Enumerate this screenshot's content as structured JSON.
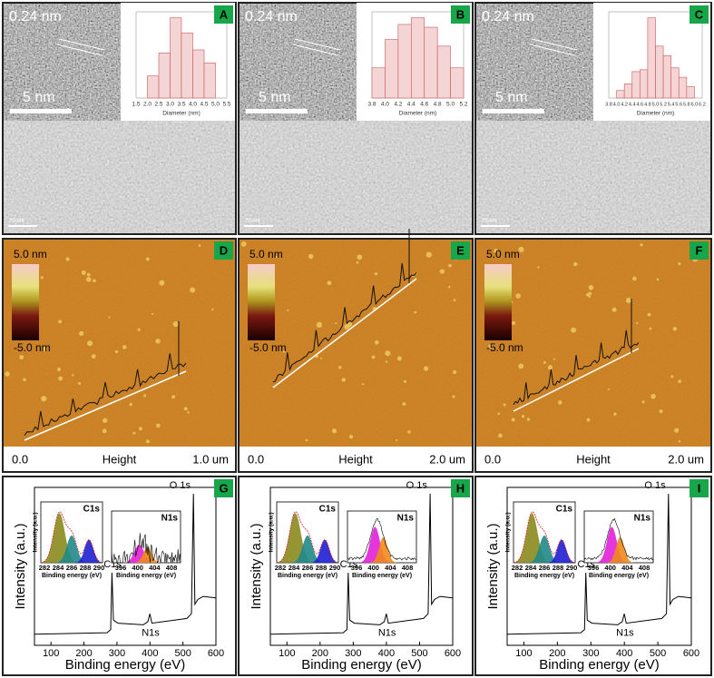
{
  "tem_panels": [
    {
      "label": "A",
      "lattice": "0.24 nm",
      "scale_hr": "5 nm",
      "scale_tem": "20 nm",
      "histogram": {
        "xlabel": "Diameter (nm)",
        "bins": [
          "1.5",
          "2.0",
          "2.5",
          "3.0",
          "3.5",
          "4.0",
          "4.5",
          "5.0",
          "5.5"
        ],
        "counts": [
          null,
          22,
          45,
          80,
          65,
          48,
          35,
          null
        ]
      }
    },
    {
      "label": "B",
      "lattice": "0.24 nm",
      "scale_hr": "5 nm",
      "scale_tem": "20 nm",
      "histogram": {
        "xlabel": "Diameter (nm)",
        "bins": [
          "3.8",
          "4.0",
          "4.2",
          "4.4",
          "4.6",
          "4.8",
          "5.0",
          "5.2"
        ],
        "counts": [
          32,
          62,
          78,
          85,
          75,
          55,
          32
        ]
      }
    },
    {
      "label": "C",
      "lattice": "0.24 nm",
      "scale_hr": "5 nm",
      "scale_tem": "20 nm",
      "histogram": {
        "xlabel": "Diameter (nm)",
        "bins": [
          "3.8",
          "4.0",
          "4.2",
          "4.4",
          "4.6",
          "4.8",
          "5.0",
          "5.2",
          "5.4",
          "5.6",
          "5.8",
          "6.0",
          "6.2"
        ],
        "counts": [
          null,
          8,
          15,
          28,
          30,
          85,
          55,
          45,
          32,
          22,
          12,
          null
        ]
      }
    }
  ],
  "afm_panels": [
    {
      "label": "D",
      "scale_top": "5.0 nm",
      "scale_bottom": "-5.0 nm",
      "axis_start": "0.0",
      "axis_title": "Height",
      "axis_end": "1.0 um"
    },
    {
      "label": "E",
      "scale_top": "5.0 nm",
      "scale_bottom": "-5.0 nm",
      "axis_start": "0.0",
      "axis_title": "Height",
      "axis_end": "2.0 um"
    },
    {
      "label": "F",
      "scale_top": "5.0 nm",
      "scale_bottom": "-5.0 nm",
      "axis_start": "0.0",
      "axis_title": "Height",
      "axis_end": "2.0 um"
    }
  ],
  "xps_panels": [
    {
      "label": "G",
      "ylabel": "Intensity (a.u.)",
      "xlabel": "Binding energy (eV)",
      "xlim": [
        50,
        600
      ],
      "xticks": [
        100,
        200,
        300,
        400,
        500,
        600
      ],
      "peak_c": "C1s",
      "peak_o": "O 1s",
      "peak_n": "N1s",
      "inset_c": {
        "title": "C1s",
        "xticks": [
          282,
          284,
          286,
          288,
          290
        ],
        "xlabel": "Binding energy (eV)",
        "ylabel": "Intensity (a.u.)"
      },
      "inset_n": {
        "title": "N1s",
        "xticks": [
          396,
          400,
          404,
          408
        ],
        "xlabel": "Binding energy (eV)"
      }
    },
    {
      "label": "H",
      "ylabel": "Intensity (a.u.)",
      "xlabel": "Binding energy (eV)",
      "xlim": [
        50,
        600
      ],
      "xticks": [
        100,
        200,
        300,
        400,
        500,
        600
      ],
      "peak_c": "C1s",
      "peak_o": "O 1s",
      "peak_n": "N1s",
      "inset_c": {
        "title": "C1s",
        "xticks": [
          282,
          284,
          286,
          288,
          290
        ],
        "xlabel": "Binding energy (eV)",
        "ylabel": "Intensity (a.u.)"
      },
      "inset_n": {
        "title": "N1s",
        "xticks": [
          396,
          400,
          404,
          408
        ],
        "xlabel": "Binding energy (eV)"
      }
    },
    {
      "label": "I",
      "ylabel": "Intensity (a.u.)",
      "xlabel": "Binding energy (eV)",
      "xlim": [
        50,
        600
      ],
      "xticks": [
        100,
        200,
        300,
        400,
        500,
        600
      ],
      "peak_c": "C1s",
      "peak_o": "O 1s",
      "peak_n": "N1s",
      "inset_c": {
        "title": "C1s",
        "xticks": [
          282,
          284,
          286,
          288,
          290
        ],
        "xlabel": "Binding energy (eV)",
        "ylabel": "Intensity (a.u.)"
      },
      "inset_n": {
        "title": "N1s",
        "xticks": [
          396,
          400,
          404,
          408
        ],
        "xlabel": "Binding energy (eV)"
      }
    }
  ]
}
